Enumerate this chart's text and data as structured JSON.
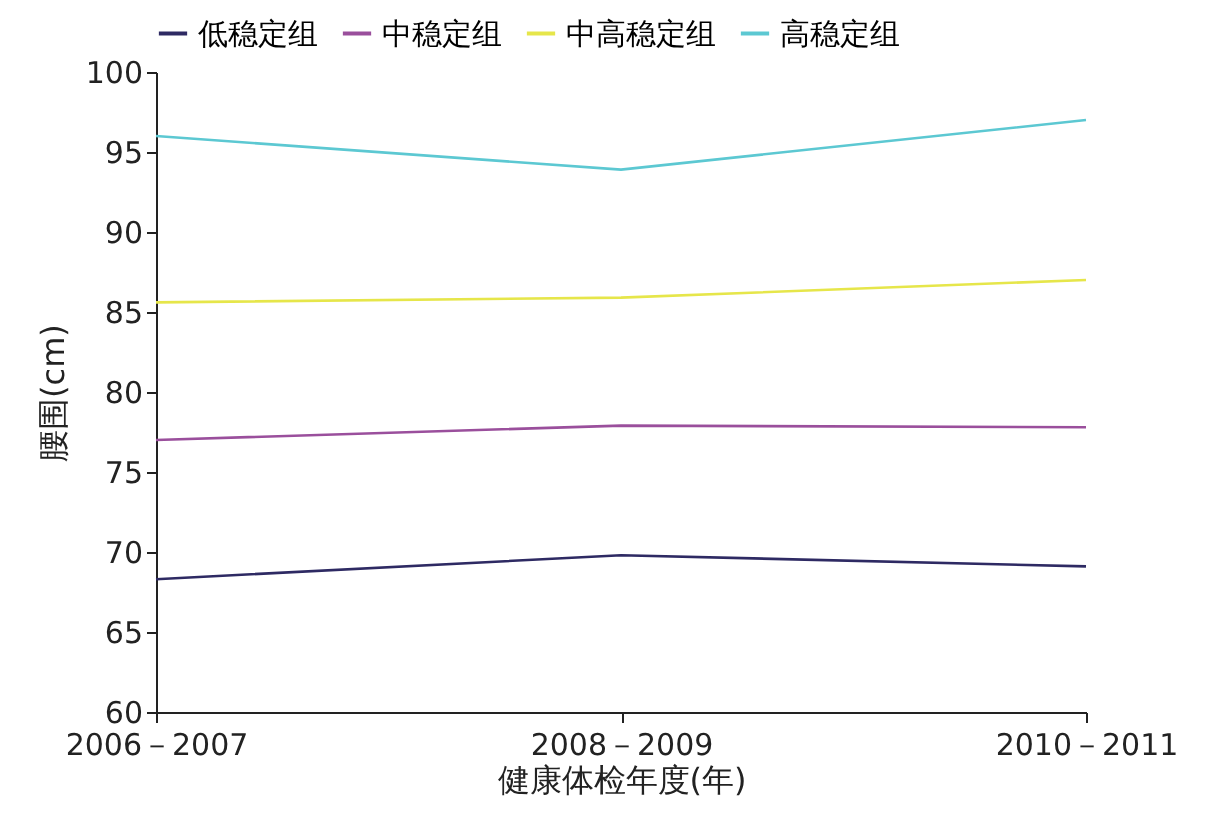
{
  "chart_data": {
    "type": "line",
    "xlabel": "健康体检年度(年)",
    "ylabel": "腰围(cm)",
    "categories": [
      "2006－2007",
      "2008－2009",
      "2010－2011"
    ],
    "series": [
      {
        "name": "低稳定组",
        "color": "#2e2a63",
        "values": [
          68.3,
          69.8,
          69.1
        ]
      },
      {
        "name": "中稳定组",
        "color": "#9a4f9c",
        "values": [
          77.0,
          77.9,
          77.8
        ]
      },
      {
        "name": "中高稳定组",
        "color": "#e6e64a",
        "values": [
          85.6,
          85.9,
          87.0
        ]
      },
      {
        "name": "高稳定组",
        "color": "#5cc8d2",
        "values": [
          96.0,
          93.9,
          97.0
        ]
      }
    ],
    "ylim": [
      60,
      100
    ],
    "yticks": [
      60,
      65,
      70,
      75,
      80,
      85,
      90,
      95,
      100
    ],
    "grid": false,
    "legend": "top left",
    "marker": "none",
    "line_style": "solid"
  }
}
